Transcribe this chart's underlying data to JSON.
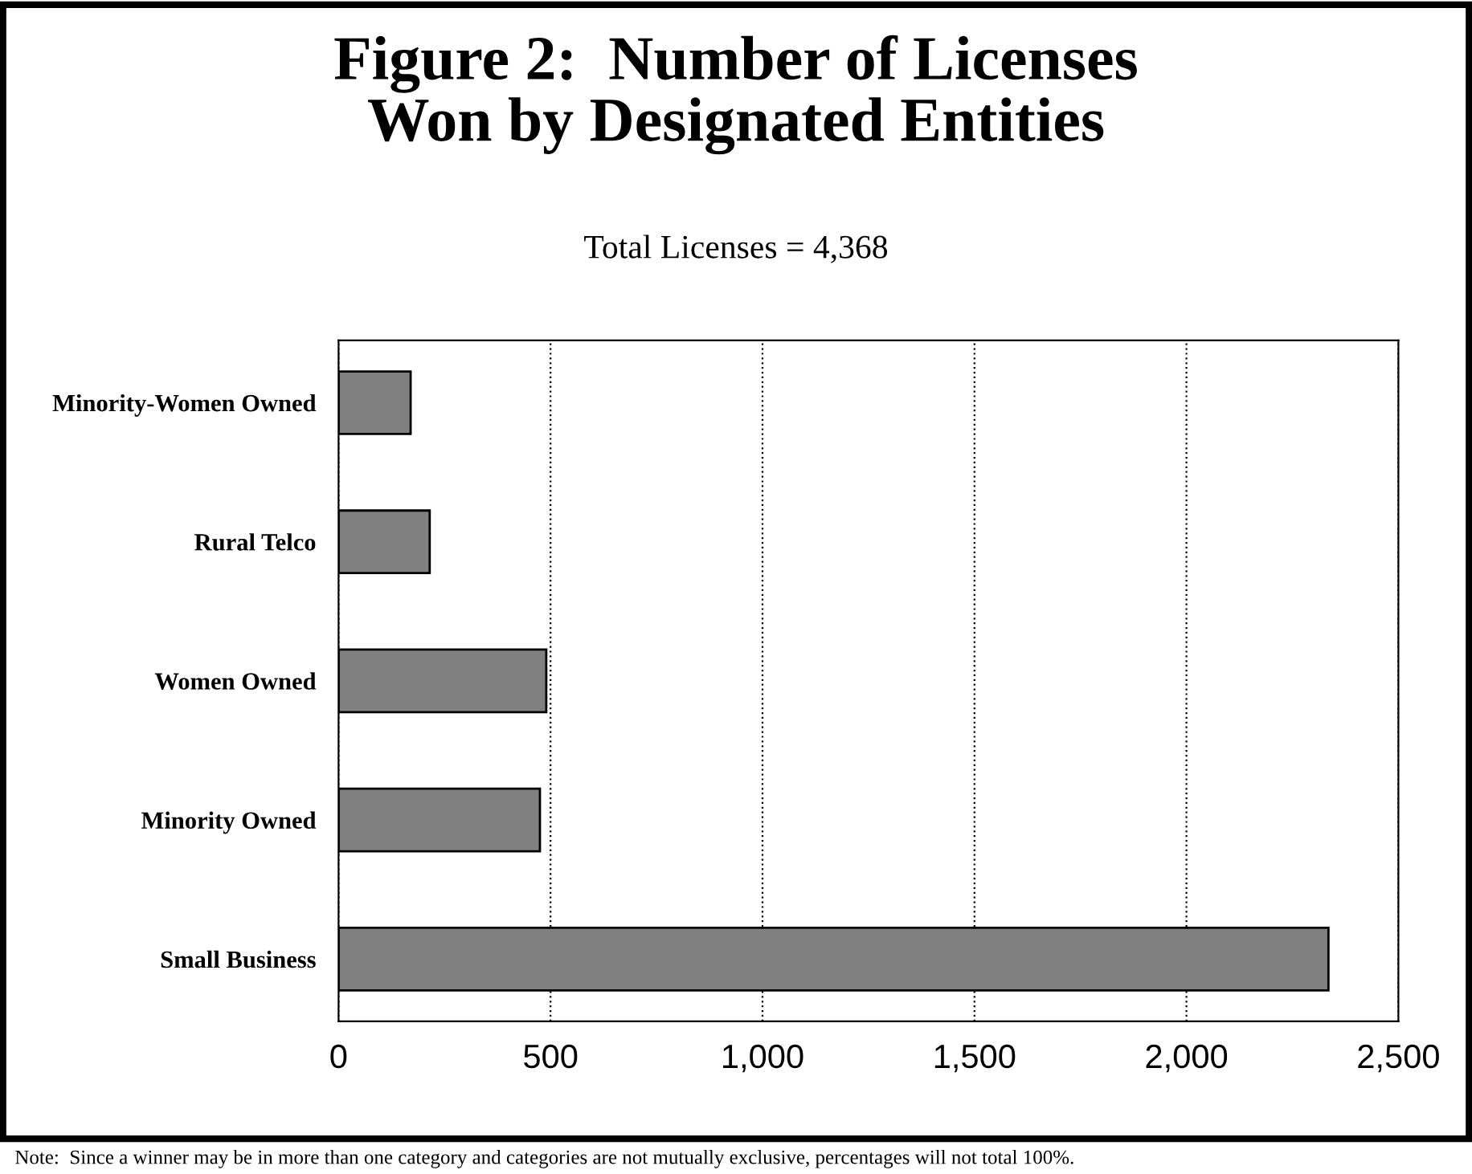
{
  "chart_data": {
    "type": "bar",
    "orientation": "horizontal",
    "title": "Figure 2:  Number of Licenses\nWon by Designated Entities",
    "subtitle": "Total Licenses = 4,368",
    "categories": [
      "Minority-Women Owned",
      "Rural Telco",
      "Women Owned",
      "Minority Owned",
      "Small Business"
    ],
    "values": [
      170,
      215,
      490,
      475,
      2335
    ],
    "color": "#808080",
    "xlim": [
      0,
      2500
    ],
    "xticks": [
      0,
      {
        "value": 500,
        "label": "500"
      },
      {
        "value": 1000,
        "label": "1,000"
      },
      {
        "value": 1500,
        "label": "1,500"
      },
      {
        "value": 2000,
        "label": "2,000"
      },
      {
        "value": 2500,
        "label": "2,500"
      }
    ],
    "grid": "x",
    "annotations": [
      "Note:  Since a winner may be in more than one category and categories are not mutually exclusive, percentages will not total 100%."
    ]
  }
}
